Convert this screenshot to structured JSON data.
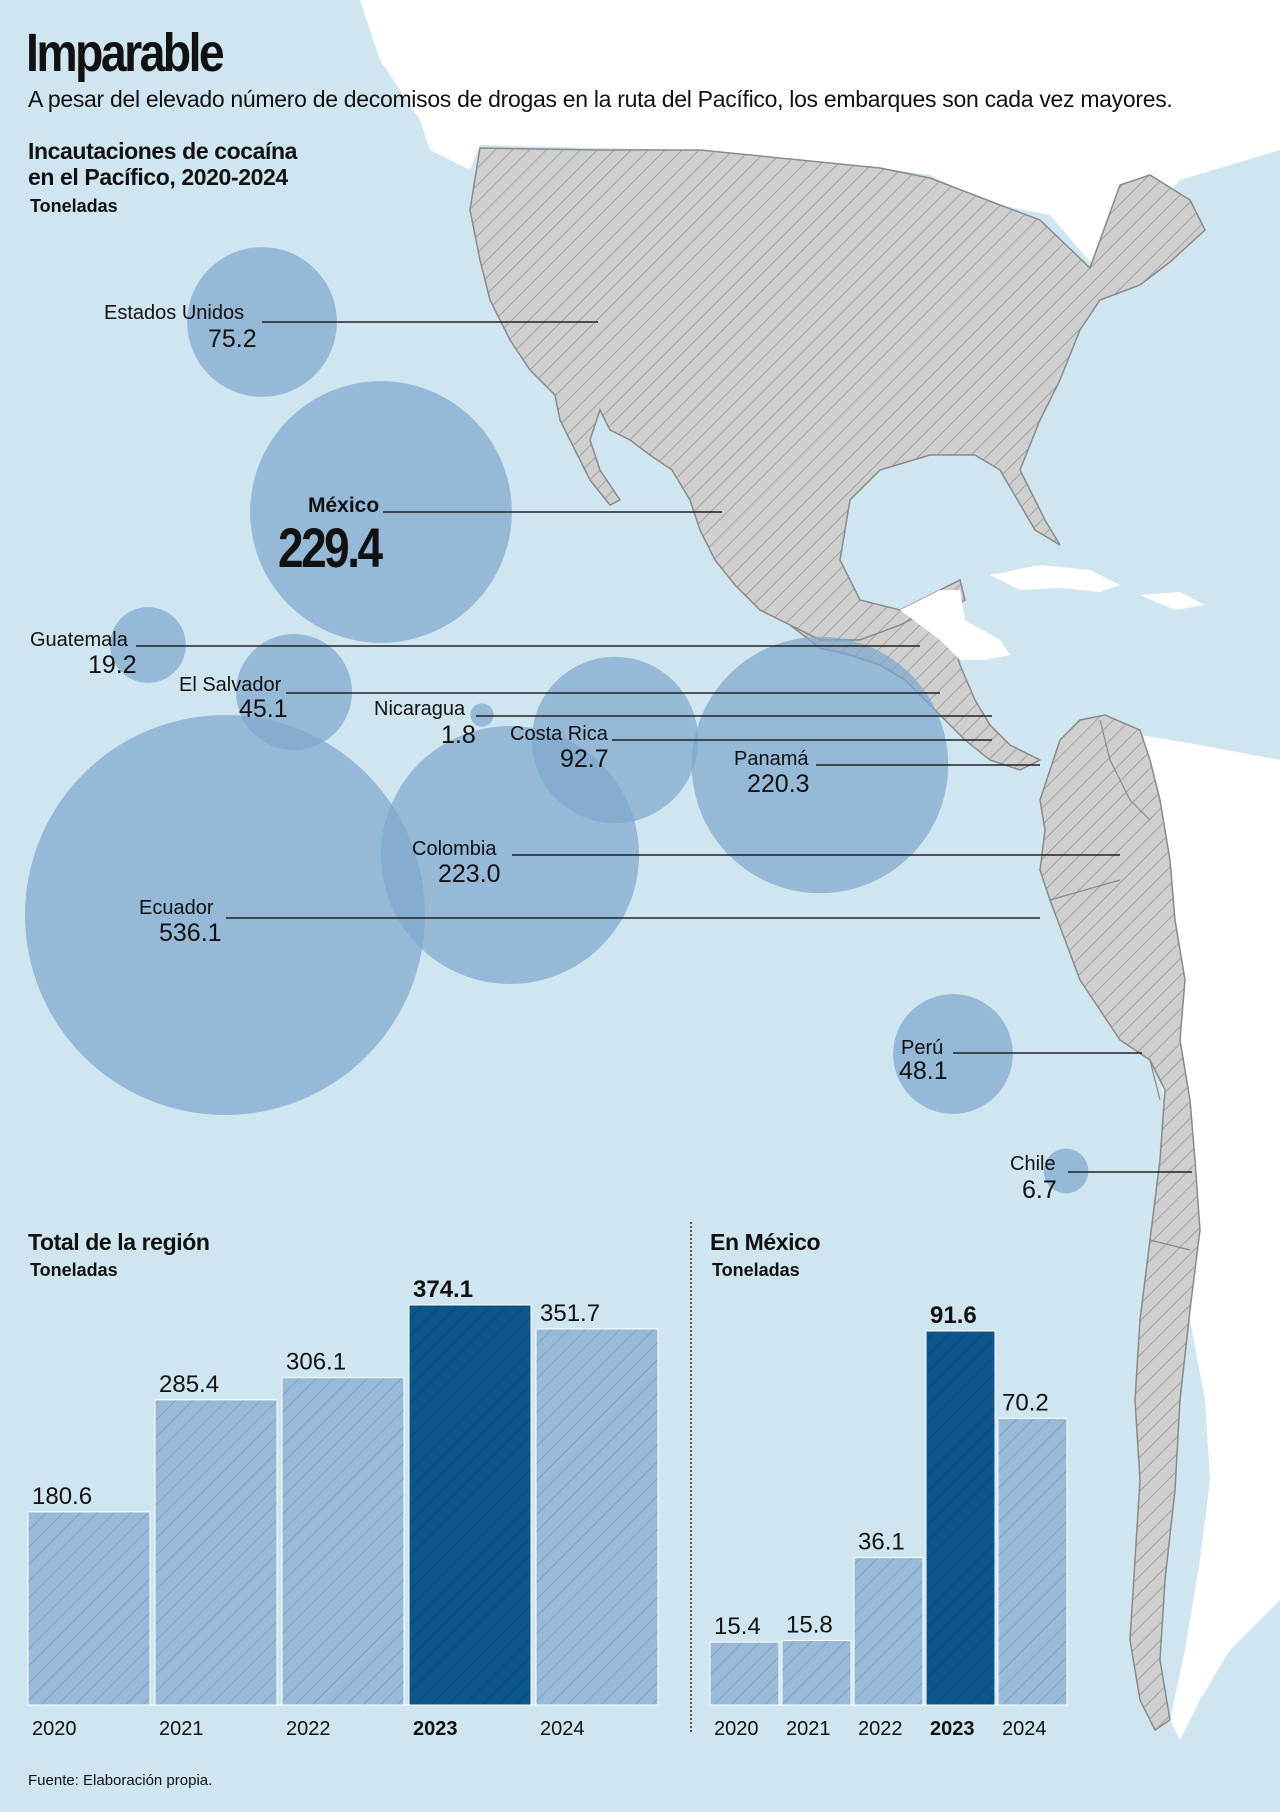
{
  "header": {
    "title": "Imparable",
    "subtitle": "A pesar del elevado número de decomisos de drogas en la ruta del Pacífico, los embarques son cada vez mayores."
  },
  "map_section": {
    "title_line1": "Incautaciones de cocaína",
    "title_line2": "en el Pacífico, 2020-2024",
    "unit": "Toneladas"
  },
  "colors": {
    "ocean": "#cfe6f1",
    "land_focus": "#cfcfcf",
    "land_other": "#ffffff",
    "bubble": "#7ea8cc",
    "bar_light": "#98bad6",
    "bar_highlight": "#0d568a"
  },
  "chart_data": [
    {
      "type": "bubble",
      "title": "Incautaciones de cocaína en el Pacífico, 2020-2024",
      "unit": "Toneladas",
      "points": [
        {
          "name": "Estados Unidos",
          "value": 75.2
        },
        {
          "name": "México",
          "value": 229.4
        },
        {
          "name": "Guatemala",
          "value": 19.2
        },
        {
          "name": "El Salvador",
          "value": 45.1
        },
        {
          "name": "Nicaragua",
          "value": 1.8
        },
        {
          "name": "Costa Rica",
          "value": 92.7
        },
        {
          "name": "Panamá",
          "value": 220.3
        },
        {
          "name": "Colombia",
          "value": 223.0
        },
        {
          "name": "Ecuador",
          "value": 536.1
        },
        {
          "name": "Perú",
          "value": 48.1
        },
        {
          "name": "Chile",
          "value": 6.7
        }
      ]
    },
    {
      "type": "bar",
      "title": "Total de la región",
      "unit": "Toneladas",
      "categories": [
        "2020",
        "2021",
        "2022",
        "2023",
        "2024"
      ],
      "values": [
        180.6,
        285.4,
        306.1,
        374.1,
        351.7
      ],
      "highlight": "2023",
      "ylim": [
        0,
        374.1
      ]
    },
    {
      "type": "bar",
      "title": "En México",
      "unit": "Toneladas",
      "categories": [
        "2020",
        "2021",
        "2022",
        "2023",
        "2024"
      ],
      "values": [
        15.4,
        15.8,
        36.1,
        91.6,
        70.2
      ],
      "highlight": "2023",
      "ylim": [
        0,
        91.6
      ]
    }
  ],
  "footer": {
    "source": "Fuente: Elaboración propia."
  }
}
